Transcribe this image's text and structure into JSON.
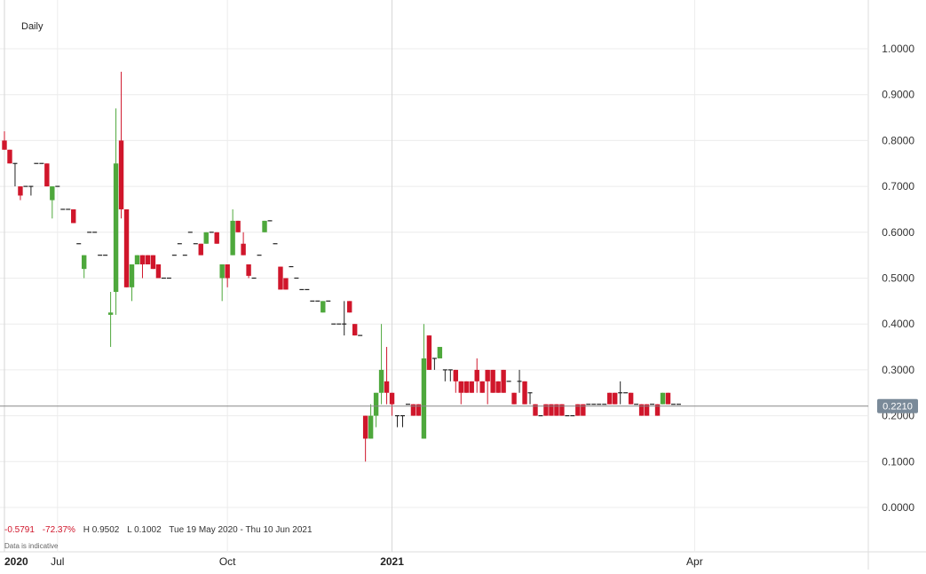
{
  "period_label": "Daily",
  "summary": {
    "change": "-0.5791",
    "change_pct": "-72.37%",
    "high": "H 0.9502",
    "low": "L 0.1002",
    "range": "Tue 19 May 2020 - Thu 10 Jun 2021"
  },
  "disclaimer": "Data is indicative",
  "current_price": "0.2210",
  "colors": {
    "up": "#4ea83c",
    "down": "#d0162b",
    "flat": "#222222",
    "grid": "#ececec",
    "price_line": "#888888",
    "price_tag": "#7a8a99"
  },
  "chart_data": {
    "type": "candlestick",
    "ylim": [
      -0.03,
      1.1
    ],
    "y_ticks": [
      "1.0000",
      "0.9000",
      "0.8000",
      "0.7000",
      "0.6000",
      "0.5000",
      "0.4000",
      "0.3000",
      "0.2000",
      "0.1000",
      "0.0000"
    ],
    "x_ticks": [
      {
        "label": "2020",
        "index": 0,
        "bold": true
      },
      {
        "label": "Jul",
        "index": 10,
        "bold": false
      },
      {
        "label": "Oct",
        "index": 42,
        "bold": false
      },
      {
        "label": "2021",
        "index": 73,
        "bold": true
      },
      {
        "label": "Apr",
        "index": 130,
        "bold": false
      }
    ],
    "candles": [
      [
        0.8,
        0.82,
        0.78,
        0.78
      ],
      [
        0.78,
        0.78,
        0.75,
        0.75
      ],
      [
        0.75,
        0.75,
        0.7,
        0.75
      ],
      [
        0.7,
        0.7,
        0.67,
        0.68
      ],
      [
        0.7,
        0.7,
        0.7,
        0.7
      ],
      [
        0.7,
        0.7,
        0.68,
        0.7
      ],
      [
        0.75,
        0.75,
        0.75,
        0.75
      ],
      [
        0.75,
        0.75,
        0.75,
        0.75
      ],
      [
        0.75,
        0.75,
        0.7,
        0.7
      ],
      [
        0.67,
        0.7,
        0.63,
        0.7
      ],
      [
        0.7,
        0.7,
        0.7,
        0.7
      ],
      [
        0.65,
        0.65,
        0.65,
        0.65
      ],
      [
        0.65,
        0.65,
        0.65,
        0.65
      ],
      [
        0.65,
        0.65,
        0.62,
        0.62
      ],
      [
        0.575,
        0.575,
        0.575,
        0.575
      ],
      [
        0.52,
        0.55,
        0.5,
        0.55
      ],
      [
        0.6,
        0.6,
        0.6,
        0.6
      ],
      [
        0.6,
        0.6,
        0.6,
        0.6
      ],
      [
        0.55,
        0.55,
        0.55,
        0.55
      ],
      [
        0.55,
        0.55,
        0.55,
        0.55
      ],
      [
        0.42,
        0.47,
        0.35,
        0.425
      ],
      [
        0.47,
        0.87,
        0.42,
        0.75
      ],
      [
        0.8,
        0.95,
        0.63,
        0.65
      ],
      [
        0.65,
        0.65,
        0.48,
        0.48
      ],
      [
        0.48,
        0.53,
        0.45,
        0.53
      ],
      [
        0.53,
        0.55,
        0.53,
        0.55
      ],
      [
        0.55,
        0.55,
        0.5,
        0.53
      ],
      [
        0.55,
        0.55,
        0.53,
        0.53
      ],
      [
        0.55,
        0.55,
        0.52,
        0.52
      ],
      [
        0.53,
        0.53,
        0.5,
        0.5
      ],
      [
        0.5,
        0.5,
        0.5,
        0.5
      ],
      [
        0.5,
        0.5,
        0.5,
        0.5
      ],
      [
        0.55,
        0.55,
        0.55,
        0.55
      ],
      [
        0.575,
        0.575,
        0.575,
        0.575
      ],
      [
        0.55,
        0.55,
        0.55,
        0.55
      ],
      [
        0.6,
        0.6,
        0.6,
        0.6
      ],
      [
        0.575,
        0.575,
        0.575,
        0.575
      ],
      [
        0.575,
        0.575,
        0.55,
        0.55
      ],
      [
        0.575,
        0.6,
        0.575,
        0.6
      ],
      [
        0.6,
        0.6,
        0.6,
        0.6
      ],
      [
        0.6,
        0.6,
        0.575,
        0.575
      ],
      [
        0.5,
        0.53,
        0.45,
        0.53
      ],
      [
        0.53,
        0.53,
        0.48,
        0.5
      ],
      [
        0.55,
        0.65,
        0.55,
        0.625
      ],
      [
        0.625,
        0.625,
        0.6,
        0.6
      ],
      [
        0.575,
        0.6,
        0.55,
        0.55
      ],
      [
        0.53,
        0.53,
        0.5,
        0.505
      ],
      [
        0.5,
        0.5,
        0.5,
        0.5
      ],
      [
        0.55,
        0.55,
        0.55,
        0.55
      ],
      [
        0.6,
        0.625,
        0.6,
        0.625
      ],
      [
        0.625,
        0.625,
        0.625,
        0.625
      ],
      [
        0.575,
        0.575,
        0.575,
        0.575
      ],
      [
        0.525,
        0.525,
        0.475,
        0.475
      ],
      [
        0.5,
        0.5,
        0.475,
        0.475
      ],
      [
        0.525,
        0.525,
        0.525,
        0.525
      ],
      [
        0.5,
        0.5,
        0.5,
        0.5
      ],
      [
        0.475,
        0.475,
        0.475,
        0.475
      ],
      [
        0.475,
        0.475,
        0.475,
        0.475
      ],
      [
        0.45,
        0.45,
        0.45,
        0.45
      ],
      [
        0.45,
        0.45,
        0.45,
        0.45
      ],
      [
        0.425,
        0.45,
        0.425,
        0.45
      ],
      [
        0.45,
        0.45,
        0.45,
        0.45
      ],
      [
        0.4,
        0.4,
        0.4,
        0.4
      ],
      [
        0.4,
        0.4,
        0.4,
        0.4
      ],
      [
        0.4,
        0.45,
        0.375,
        0.4
      ],
      [
        0.45,
        0.45,
        0.425,
        0.425
      ],
      [
        0.4,
        0.4,
        0.375,
        0.375
      ],
      [
        0.375,
        0.375,
        0.375,
        0.375
      ],
      [
        0.2,
        0.2,
        0.1,
        0.15
      ],
      [
        0.15,
        0.225,
        0.15,
        0.2
      ],
      [
        0.2,
        0.25,
        0.175,
        0.25
      ],
      [
        0.25,
        0.4,
        0.225,
        0.3
      ],
      [
        0.275,
        0.35,
        0.225,
        0.25
      ],
      [
        0.25,
        0.25,
        0.2,
        0.225
      ],
      [
        0.2,
        0.2,
        0.175,
        0.2
      ],
      [
        0.2,
        0.2,
        0.175,
        0.2
      ],
      [
        0.225,
        0.225,
        0.225,
        0.225
      ],
      [
        0.225,
        0.225,
        0.2,
        0.2
      ],
      [
        0.225,
        0.225,
        0.2,
        0.2
      ],
      [
        0.15,
        0.4,
        0.15,
        0.325
      ],
      [
        0.375,
        0.375,
        0.3,
        0.3
      ],
      [
        0.325,
        0.325,
        0.3,
        0.325
      ],
      [
        0.325,
        0.35,
        0.325,
        0.35
      ],
      [
        0.3,
        0.3,
        0.275,
        0.3
      ],
      [
        0.3,
        0.3,
        0.275,
        0.3
      ],
      [
        0.3,
        0.3,
        0.25,
        0.275
      ],
      [
        0.275,
        0.275,
        0.225,
        0.25
      ],
      [
        0.275,
        0.275,
        0.25,
        0.25
      ],
      [
        0.275,
        0.275,
        0.25,
        0.25
      ],
      [
        0.3,
        0.325,
        0.25,
        0.275
      ],
      [
        0.275,
        0.275,
        0.25,
        0.25
      ],
      [
        0.3,
        0.3,
        0.225,
        0.275
      ],
      [
        0.3,
        0.3,
        0.25,
        0.25
      ],
      [
        0.275,
        0.275,
        0.25,
        0.25
      ],
      [
        0.3,
        0.3,
        0.25,
        0.25
      ],
      [
        0.275,
        0.275,
        0.275,
        0.275
      ],
      [
        0.25,
        0.25,
        0.225,
        0.225
      ],
      [
        0.275,
        0.3,
        0.25,
        0.275
      ],
      [
        0.275,
        0.275,
        0.225,
        0.225
      ],
      [
        0.25,
        0.25,
        0.225,
        0.25
      ],
      [
        0.225,
        0.225,
        0.2,
        0.2
      ],
      [
        0.2,
        0.2,
        0.2,
        0.2
      ],
      [
        0.225,
        0.225,
        0.2,
        0.2
      ],
      [
        0.225,
        0.225,
        0.2,
        0.2
      ],
      [
        0.225,
        0.225,
        0.2,
        0.2
      ],
      [
        0.225,
        0.225,
        0.2,
        0.2
      ],
      [
        0.2,
        0.2,
        0.2,
        0.2
      ],
      [
        0.2,
        0.2,
        0.2,
        0.2
      ],
      [
        0.225,
        0.225,
        0.2,
        0.2
      ],
      [
        0.225,
        0.225,
        0.2,
        0.2
      ],
      [
        0.225,
        0.225,
        0.225,
        0.225
      ],
      [
        0.225,
        0.225,
        0.225,
        0.225
      ],
      [
        0.225,
        0.225,
        0.225,
        0.225
      ],
      [
        0.225,
        0.225,
        0.225,
        0.225
      ],
      [
        0.25,
        0.25,
        0.225,
        0.225
      ],
      [
        0.25,
        0.25,
        0.225,
        0.225
      ],
      [
        0.25,
        0.275,
        0.225,
        0.25
      ],
      [
        0.25,
        0.25,
        0.25,
        0.25
      ],
      [
        0.25,
        0.25,
        0.225,
        0.225
      ],
      [
        0.225,
        0.225,
        0.225,
        0.225
      ],
      [
        0.225,
        0.225,
        0.2,
        0.2
      ],
      [
        0.225,
        0.225,
        0.2,
        0.2
      ],
      [
        0.225,
        0.225,
        0.225,
        0.225
      ],
      [
        0.225,
        0.225,
        0.2,
        0.2
      ],
      [
        0.225,
        0.25,
        0.225,
        0.25
      ],
      [
        0.25,
        0.25,
        0.225,
        0.225
      ],
      [
        0.225,
        0.225,
        0.225,
        0.225
      ],
      [
        0.225,
        0.225,
        0.225,
        0.225
      ]
    ]
  }
}
